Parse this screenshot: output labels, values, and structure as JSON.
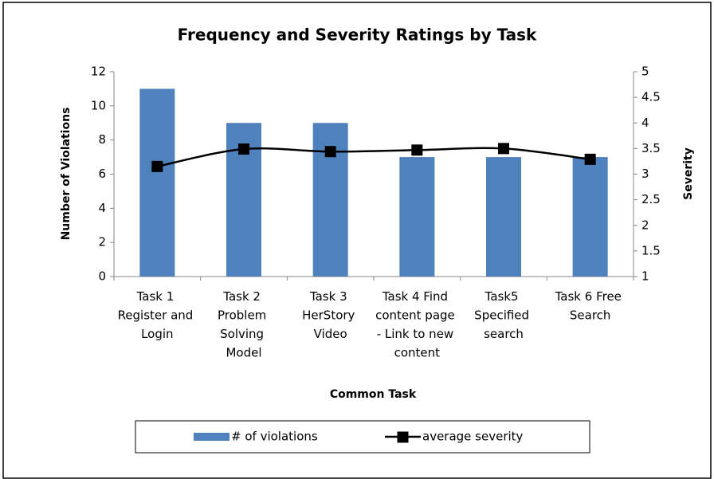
{
  "chart_data": {
    "type": "bar+line",
    "title": "Frequency and Severity Ratings by Task",
    "x_label": "Common Task",
    "y_label": "Number of Violations",
    "y2_label": "Severity",
    "categories": [
      "Task 1 Register and Login",
      "Task 2 Problem Solving Model",
      "Task 3 HerStory Video",
      "Task 4 Find content page - Link to new content",
      "Task5 Specified search",
      "Task 6 Free Search"
    ],
    "series": [
      {
        "name": "# of violations",
        "type": "bar",
        "color": "#4f81bd",
        "values": [
          11,
          9,
          9,
          7,
          7,
          7
        ]
      },
      {
        "name": "average severity",
        "type": "line",
        "axis": "y2",
        "color": "#000000",
        "values": [
          3.15,
          3.49,
          3.44,
          3.47,
          3.5,
          3.29
        ]
      }
    ],
    "ylim": [
      0,
      12
    ],
    "yticks": [
      0,
      2,
      4,
      6,
      8,
      10,
      12
    ],
    "y2lim": [
      1,
      5
    ],
    "y2ticks": [
      1,
      1.5,
      2,
      2.5,
      3,
      3.5,
      4,
      4.5,
      5
    ],
    "legend": "bottom"
  }
}
